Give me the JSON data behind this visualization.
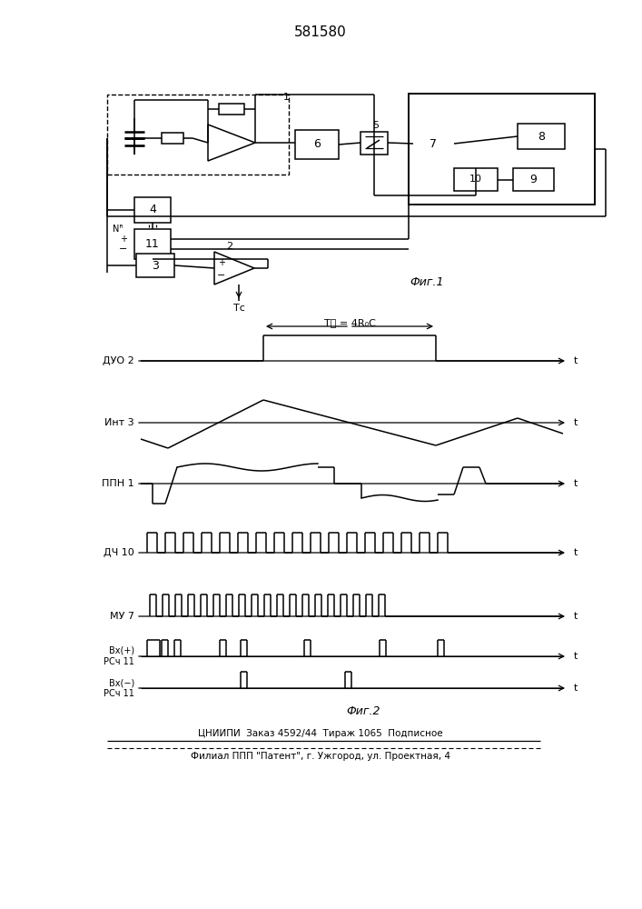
{
  "title": "581580",
  "fig1_label": "Фиг.1",
  "fig2_label": "Фиг.2",
  "footer_line1": "ЦНИИПИ  Заказ 4592/44  Тираж 1065  Подписное",
  "footer_line2": "Филиал ППП \"Патент\", г. Ужгород, ул. Проектная, 4",
  "bg": "#ffffff"
}
